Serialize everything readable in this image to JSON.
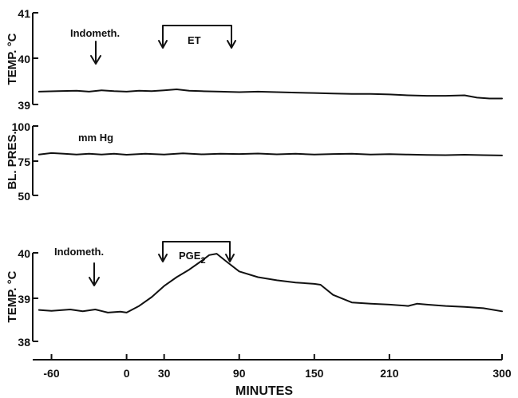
{
  "chart_data": [
    {
      "type": "line",
      "panel": "top-temperature",
      "ylabel": "TEMP. °C",
      "ylim": [
        39,
        41
      ],
      "yticks": [
        39,
        40,
        41
      ],
      "xlim": [
        -75,
        300
      ],
      "annotations": [
        {
          "text": "Indometh.",
          "kind": "arrow",
          "x": -60
        },
        {
          "text": "ET",
          "kind": "bracket",
          "x_start": 0,
          "x_end": 60
        }
      ],
      "series": [
        {
          "x": [
            -70,
            -55,
            -40,
            -30,
            -20,
            -10,
            0,
            10,
            20,
            30,
            40,
            50,
            60,
            75,
            90,
            105,
            120,
            135,
            150,
            165,
            180,
            195,
            210,
            225,
            240,
            255,
            270,
            280,
            290,
            300
          ],
          "y": [
            39.28,
            39.29,
            39.3,
            39.28,
            39.31,
            39.29,
            39.28,
            39.3,
            39.29,
            39.31,
            39.33,
            39.3,
            39.29,
            39.28,
            39.27,
            39.28,
            39.27,
            39.26,
            39.25,
            39.24,
            39.23,
            39.23,
            39.22,
            39.2,
            39.19,
            39.19,
            39.2,
            39.15,
            39.13,
            39.13
          ]
        }
      ]
    },
    {
      "type": "line",
      "panel": "blood-pressure",
      "ylabel": "BL. PRES.",
      "ylim": [
        50,
        100
      ],
      "yticks": [
        50,
        75,
        100
      ],
      "xlim": [
        -75,
        300
      ],
      "annotations": [
        {
          "text": "mm Hg",
          "kind": "unit"
        }
      ],
      "series": [
        {
          "x": [
            -70,
            -60,
            -50,
            -40,
            -30,
            -20,
            -10,
            0,
            15,
            30,
            45,
            60,
            75,
            90,
            105,
            120,
            135,
            150,
            165,
            180,
            195,
            210,
            225,
            240,
            255,
            270,
            285,
            300
          ],
          "y": [
            79.5,
            80.5,
            80,
            79.5,
            80,
            79.5,
            80,
            79.3,
            80,
            79.5,
            80.3,
            79.6,
            80,
            79.8,
            80.2,
            79.6,
            80,
            79.5,
            79.8,
            80,
            79.5,
            79.7,
            79.4,
            79.2,
            79,
            79.3,
            79,
            78.8
          ]
        }
      ]
    },
    {
      "type": "line",
      "panel": "bottom-temperature",
      "ylabel": "TEMP. °C",
      "xlabel": "MINUTES",
      "ylim": [
        38,
        40
      ],
      "yticks": [
        38,
        39,
        40
      ],
      "xlim": [
        -75,
        300
      ],
      "xticks": [
        -60,
        0,
        30,
        90,
        150,
        210,
        300
      ],
      "annotations": [
        {
          "text": "Indometh.",
          "kind": "arrow",
          "x": -60
        },
        {
          "text": "PGE",
          "sub": "2",
          "kind": "bracket",
          "x_start": 0,
          "x_end": 60
        }
      ],
      "series": [
        {
          "x": [
            -70,
            -60,
            -45,
            -35,
            -25,
            -15,
            -5,
            0,
            10,
            20,
            30,
            40,
            50,
            60,
            66,
            72,
            80,
            90,
            105,
            120,
            135,
            150,
            155,
            165,
            180,
            195,
            210,
            225,
            232,
            240,
            255,
            270,
            285,
            300
          ],
          "y": [
            38.71,
            38.69,
            38.72,
            38.68,
            38.72,
            38.65,
            38.67,
            38.65,
            38.8,
            39.0,
            39.25,
            39.45,
            39.62,
            39.82,
            39.95,
            39.98,
            39.8,
            39.58,
            39.45,
            39.38,
            39.33,
            39.3,
            39.28,
            39.05,
            38.88,
            38.85,
            38.83,
            38.8,
            38.85,
            38.83,
            38.8,
            38.78,
            38.75,
            38.68
          ]
        }
      ]
    }
  ]
}
